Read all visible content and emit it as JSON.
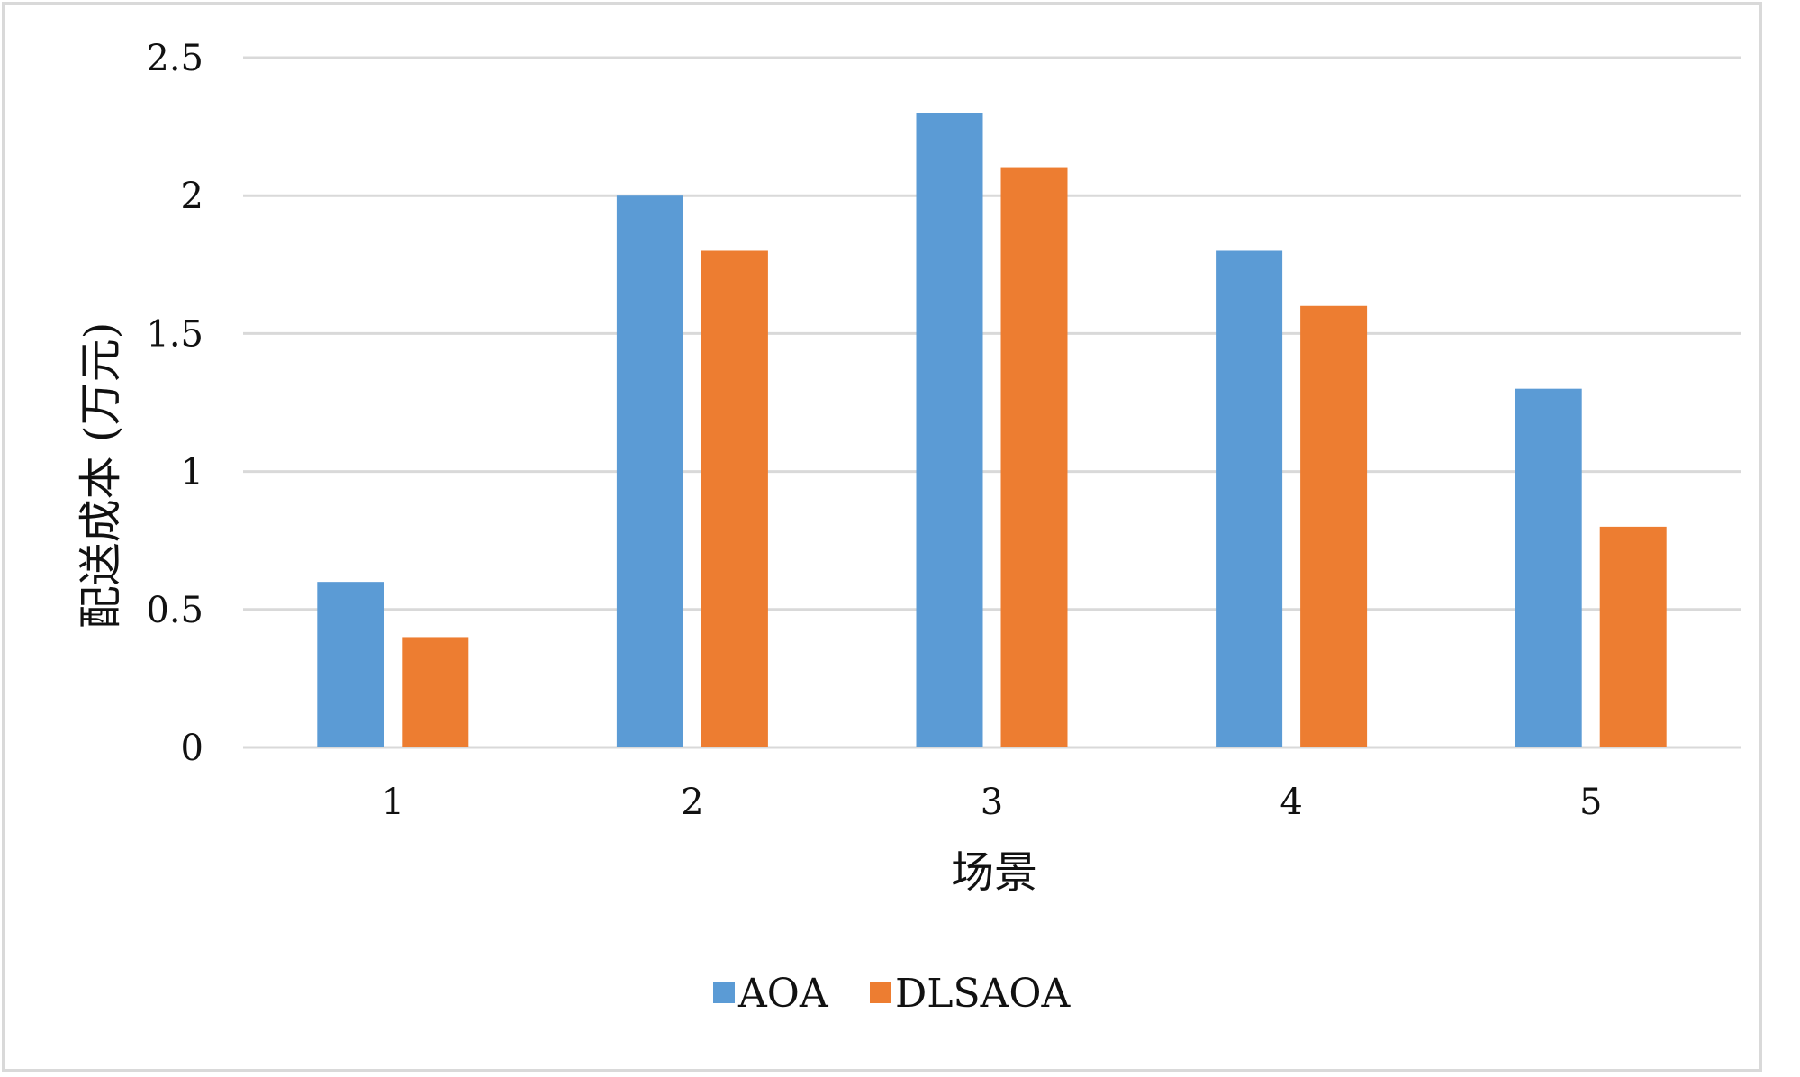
{
  "chart_data": {
    "type": "bar",
    "title": "",
    "xlabel": "场景",
    "ylabel": "配送成本 (万元)",
    "categories": [
      "1",
      "2",
      "3",
      "4",
      "5"
    ],
    "series": [
      {
        "name": "AOA",
        "values": [
          0.6,
          2.0,
          2.3,
          1.8,
          1.3
        ],
        "color": "#5b9bd5"
      },
      {
        "name": "DLSAOA",
        "values": [
          0.4,
          1.8,
          2.1,
          1.6,
          0.8
        ],
        "color": "#ed7d31"
      }
    ],
    "ylim": [
      0,
      2.5
    ],
    "yticks": [
      "0",
      "0.5",
      "1",
      "1.5",
      "2",
      "2.5"
    ],
    "grid": true,
    "legend_position": "bottom",
    "gridline_color": "#d9d9d9"
  }
}
